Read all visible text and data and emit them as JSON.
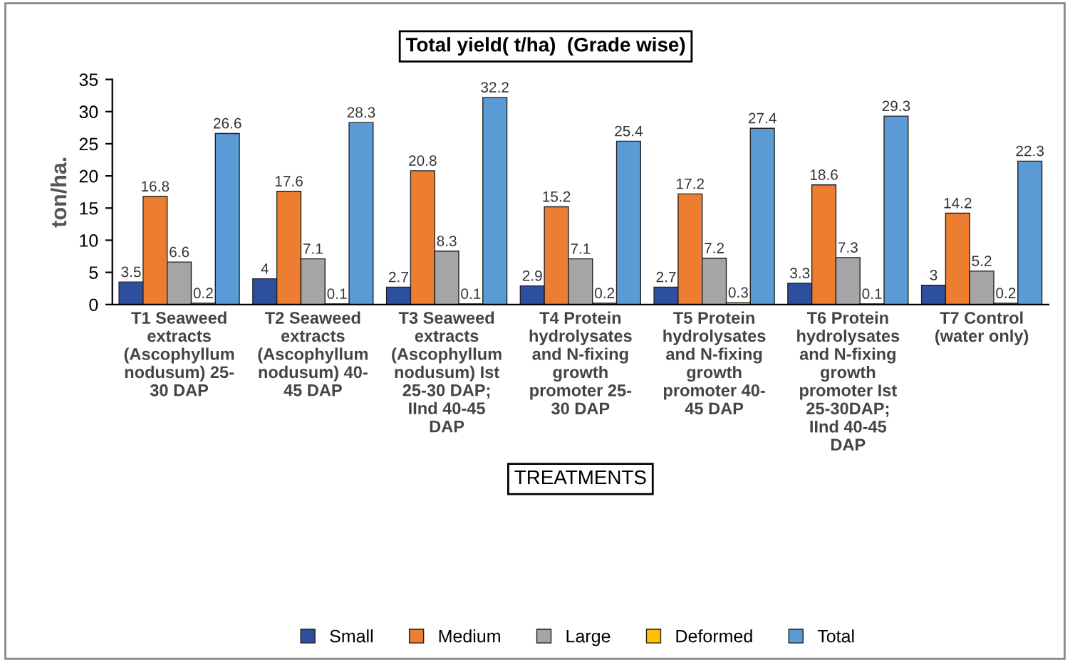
{
  "chart_data": {
    "type": "bar",
    "title": "Total yield( t/ha)  (Grade wise)",
    "xlabel": "TREATMENTS",
    "ylabel": "ton/ha.",
    "categories": [
      "T1 Seaweed\nextracts\n(Ascophyllum\nnodusum) 25-\n30 DAP",
      "T2 Seaweed\nextracts\n(Ascophyllum\nnodusum) 40-\n45 DAP",
      "T3 Seaweed\nextracts\n(Ascophyllum\nnodusum) Ist\n25-30 DAP;\nIInd 40-45\nDAP",
      "T4 Protein\nhydrolysates\nand N-fixing\ngrowth\npromoter 25-\n30 DAP",
      "T5 Protein\nhydrolysates\nand N-fixing\ngrowth\npromoter 40-\n45 DAP",
      "T6 Protein\nhydrolysates\nand N-fixing\ngrowth\npromoter Ist\n25-30DAP;\nIInd 40-45\nDAP",
      "T7 Control\n(water only)"
    ],
    "series": [
      {
        "name": "Small",
        "color": "#2e4f9e",
        "values": [
          3.5,
          4,
          2.7,
          2.9,
          2.7,
          3.3,
          3
        ]
      },
      {
        "name": "Medium",
        "color": "#ed7d31",
        "values": [
          16.8,
          17.6,
          20.8,
          15.2,
          17.2,
          18.6,
          14.2
        ]
      },
      {
        "name": "Large",
        "color": "#a5a5a5",
        "values": [
          6.6,
          7.1,
          8.3,
          7.1,
          7.2,
          7.3,
          5.2
        ]
      },
      {
        "name": "Deformed",
        "color": "#ffc000",
        "values": [
          0.2,
          0.1,
          0.1,
          0.2,
          0.3,
          0.1,
          0.2
        ]
      },
      {
        "name": "Total",
        "color": "#5b9bd5",
        "values": [
          26.6,
          28.3,
          32.2,
          25.4,
          27.4,
          29.3,
          22.3
        ]
      }
    ],
    "ylim": [
      0,
      35
    ],
    "yticks": [
      0,
      5,
      10,
      15,
      20,
      25,
      30,
      35
    ],
    "grid": false,
    "legend": "bottom",
    "data_labels": true
  }
}
